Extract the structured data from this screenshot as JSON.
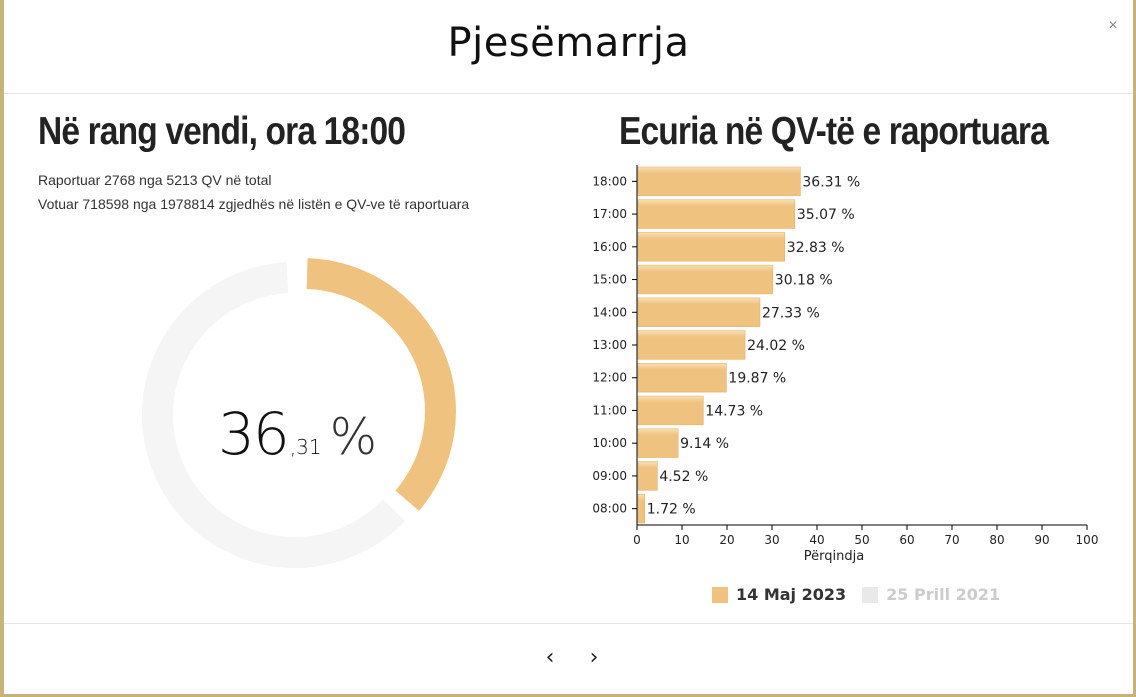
{
  "modal": {
    "title": "Pjesëmarrja",
    "close_symbol": "×"
  },
  "left": {
    "title": "Në rang vendi, ora 18:00",
    "reported_line": "Raportuar 2768 nga 5213 QV në total",
    "voted_line": "Votuar 718598 nga 1978814 zgjedhës në listën e QV-ve të raportuara",
    "gauge": {
      "value": 36.31,
      "int_text": "36",
      "dec_text": ",31",
      "pct_text": "%"
    }
  },
  "right": {
    "title": "Ecuria në QV-të e raportuara"
  },
  "colors": {
    "accent": "#efc27f",
    "track": "#f6f5f5",
    "bar_light": "#f8e0b6",
    "legend_inactive": "#e9e9e9"
  },
  "chart_data": {
    "type": "bar",
    "orientation": "horizontal",
    "categories": [
      "18:00",
      "17:00",
      "16:00",
      "15:00",
      "14:00",
      "13:00",
      "12:00",
      "11:00",
      "10:00",
      "09:00",
      "08:00"
    ],
    "series": [
      {
        "name": "14 Maj 2023",
        "values": [
          36.31,
          35.07,
          32.83,
          30.18,
          27.33,
          24.02,
          19.87,
          14.73,
          9.14,
          4.52,
          1.72
        ]
      }
    ],
    "data_labels": [
      "36.31 %",
      "35.07 %",
      "32.83 %",
      "30.18 %",
      "27.33 %",
      "24.02 %",
      "19.87 %",
      "14.73 %",
      "9.14 %",
      "4.52 %",
      "1.72 %"
    ],
    "xlabel": "Përqindja",
    "xlim": [
      0,
      100
    ],
    "xticks": [
      "0",
      "10",
      "20",
      "30",
      "40",
      "50",
      "60",
      "70",
      "80",
      "90",
      "100"
    ],
    "legend": [
      {
        "label": "14 Maj 2023",
        "active": true
      },
      {
        "label": "25 Prill 2021",
        "active": false
      }
    ],
    "legend_position": "bottom",
    "grid": false
  },
  "nav": {
    "prev": "‹",
    "next": "›"
  }
}
